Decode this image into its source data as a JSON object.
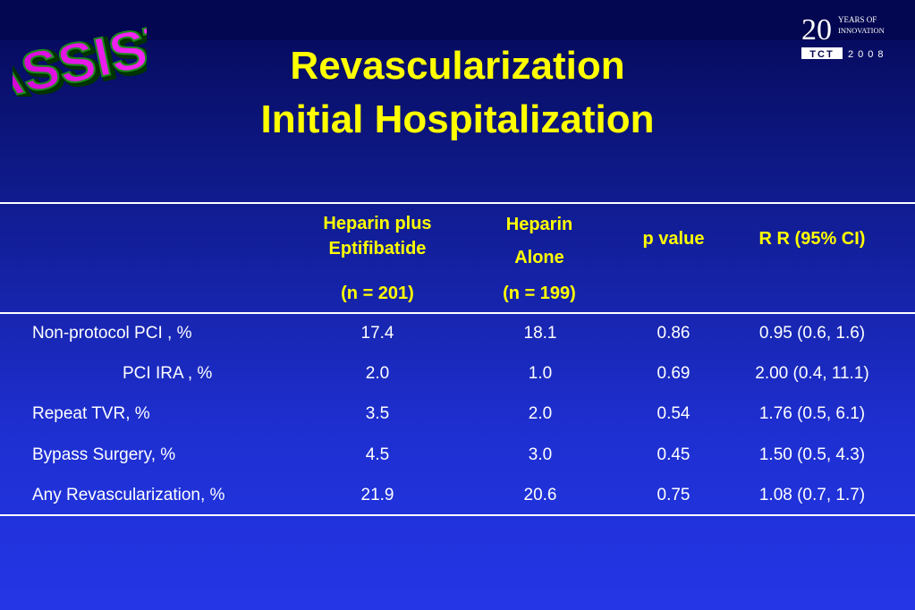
{
  "logo": {
    "text": "ASSIST"
  },
  "tct": {
    "num": "20",
    "line1": "YEARS OF",
    "line2": "INNOVATION",
    "brand": "TCT",
    "year": "2008"
  },
  "title": {
    "line1": "Revascularization",
    "line2": "Initial Hospitalization"
  },
  "table": {
    "headers": [
      {
        "line1": "Heparin plus",
        "line2": "Eptifibatide",
        "n": "(n = 201)"
      },
      {
        "line1": "Heparin",
        "line2": "Alone",
        "n": "(n = 199)"
      },
      {
        "line1": "p value"
      },
      {
        "line1": "R R (95% CI)"
      }
    ],
    "rows": [
      {
        "label": "Non-protocol PCI , %",
        "values": [
          "17.4",
          "18.1",
          "0.86",
          "0.95 (0.6, 1.6)"
        ]
      },
      {
        "label": "PCI IRA , %",
        "values": [
          "2.0",
          "1.0",
          "0.69",
          "2.00 (0.4, 11.1)"
        ]
      },
      {
        "label": "Repeat TVR, %",
        "values": [
          "3.5",
          "2.0",
          "0.54",
          "1.76 (0.5, 6.1)"
        ]
      },
      {
        "label": "Bypass Surgery, %",
        "values": [
          "4.5",
          "3.0",
          "0.45",
          "1.50 (0.5, 4.3)"
        ]
      },
      {
        "label": "Any Revascularization, %",
        "values": [
          "21.9",
          "20.6",
          "0.75",
          "1.08 (0.7, 1.7)"
        ]
      }
    ]
  }
}
